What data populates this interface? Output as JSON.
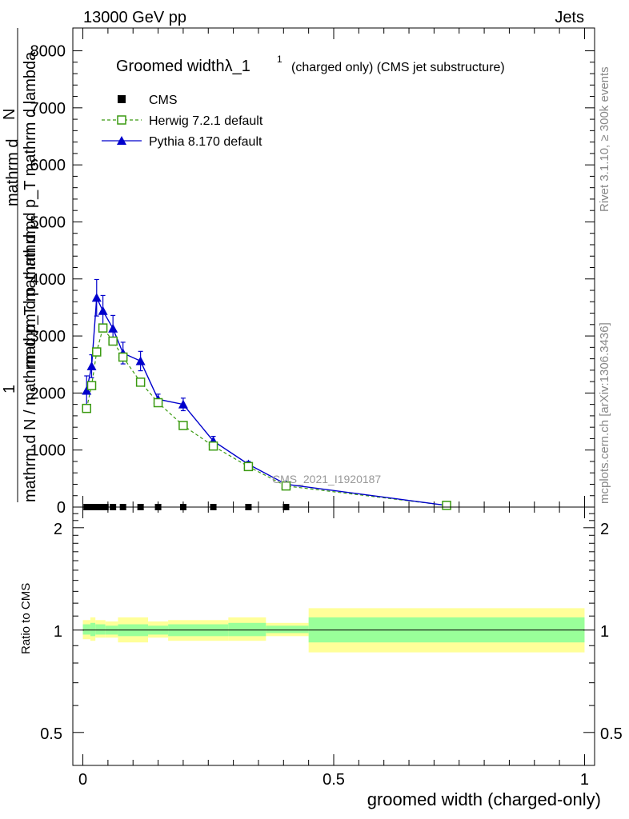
{
  "header": {
    "left": "13000 GeV pp",
    "right": "Jets"
  },
  "side_labels": {
    "rivet": "Rivet 3.1.10, ≥ 300k events",
    "mcplots": "mcplots.cern.ch [arXiv:1306.3436]"
  },
  "watermark": "CMS_2021_I1920187",
  "colors": {
    "cms": "#000000",
    "herwig": "#3a9a10",
    "pythia": "#0000cc",
    "band_inner": "#99ff99",
    "band_outer": "#ffff99"
  },
  "chart_data": [
    {
      "type": "line",
      "title": "Groomed widthλ_1",
      "title_sup": "1",
      "subtitle": "(charged only) (CMS jet substructure)",
      "ylabel_numerator_top": "mathrm d",
      "ylabel_numerator_mid": "N",
      "ylabel_numerator_rest": "mathrm d p_T mathrm d lambda",
      "ylabel_numerator_line2": "mathrm d p",
      "ylabel_fraction_one": "1",
      "ylabel_denominator": "mathrm d N / mathrm d p_T mathrm d p",
      "xlim": [
        -0.02,
        1.02
      ],
      "ylim": [
        0,
        8400
      ],
      "yticks": [
        0,
        1000,
        2000,
        3000,
        4000,
        5000,
        6000,
        7000,
        8000
      ],
      "ytick_labels": [
        "0",
        "1000",
        "2000",
        "3000",
        "4000",
        "5000",
        "6000",
        "7000",
        "8000"
      ],
      "legend_position": "top-left",
      "series": [
        {
          "name": "CMS",
          "marker": "square-filled",
          "x": [
            0.0075,
            0.0175,
            0.0275,
            0.035,
            0.045,
            0.06,
            0.08,
            0.115,
            0.15,
            0.2,
            0.26,
            0.33,
            0.405
          ],
          "y": [
            0,
            0,
            0,
            0,
            0,
            0,
            0,
            0,
            0,
            0,
            0,
            0,
            0
          ]
        },
        {
          "name": "Herwig 7.2.1 default",
          "marker": "square-open",
          "line": "dashed",
          "x": [
            0.0075,
            0.0175,
            0.0275,
            0.04,
            0.06,
            0.08,
            0.115,
            0.15,
            0.2,
            0.26,
            0.33,
            0.405,
            0.725
          ],
          "y": [
            1730,
            2130,
            2720,
            3140,
            2910,
            2630,
            2190,
            1830,
            1430,
            1070,
            710,
            370,
            30
          ]
        },
        {
          "name": "Pythia 8.170 default",
          "marker": "triangle-filled",
          "line": "solid",
          "x": [
            0.0075,
            0.0175,
            0.0275,
            0.04,
            0.06,
            0.08,
            0.115,
            0.15,
            0.2,
            0.26,
            0.33,
            0.405,
            0.725
          ],
          "y": [
            2040,
            2470,
            3670,
            3440,
            3130,
            2700,
            2560,
            1890,
            1800,
            1160,
            750,
            400,
            30
          ],
          "yerr": [
            260,
            200,
            320,
            270,
            230,
            190,
            170,
            90,
            110,
            80,
            50,
            30,
            10
          ]
        }
      ]
    },
    {
      "type": "area",
      "ylabel": "Ratio to CMS",
      "xlabel": "groomed width (charged-only)",
      "xlim": [
        -0.02,
        1.02
      ],
      "ylim": [
        0.4,
        2.3
      ],
      "yscale": "log",
      "yticks": [
        0.5,
        1,
        2
      ],
      "ytick_labels": [
        "0.5",
        "1",
        "2"
      ],
      "xticks": [
        0,
        0.5,
        1
      ],
      "xtick_labels": [
        "0",
        "0.5",
        "1"
      ],
      "bands": [
        {
          "x0": 0.0,
          "x1": 0.015,
          "inner": [
            0.97,
            1.04
          ],
          "outer": [
            0.94,
            1.07
          ]
        },
        {
          "x0": 0.015,
          "x1": 0.025,
          "inner": [
            0.96,
            1.05
          ],
          "outer": [
            0.93,
            1.09
          ]
        },
        {
          "x0": 0.025,
          "x1": 0.045,
          "inner": [
            0.97,
            1.04
          ],
          "outer": [
            0.95,
            1.07
          ]
        },
        {
          "x0": 0.045,
          "x1": 0.07,
          "inner": [
            0.97,
            1.03
          ],
          "outer": [
            0.95,
            1.06
          ]
        },
        {
          "x0": 0.07,
          "x1": 0.13,
          "inner": [
            0.96,
            1.04
          ],
          "outer": [
            0.92,
            1.09
          ]
        },
        {
          "x0": 0.13,
          "x1": 0.17,
          "inner": [
            0.97,
            1.03
          ],
          "outer": [
            0.95,
            1.06
          ]
        },
        {
          "x0": 0.17,
          "x1": 0.29,
          "inner": [
            0.96,
            1.04
          ],
          "outer": [
            0.93,
            1.07
          ]
        },
        {
          "x0": 0.29,
          "x1": 0.365,
          "inner": [
            0.96,
            1.05
          ],
          "outer": [
            0.93,
            1.09
          ]
        },
        {
          "x0": 0.365,
          "x1": 0.45,
          "inner": [
            0.98,
            1.03
          ],
          "outer": [
            0.96,
            1.05
          ]
        },
        {
          "x0": 0.45,
          "x1": 1.0,
          "inner": [
            0.92,
            1.09
          ],
          "outer": [
            0.86,
            1.16
          ]
        }
      ],
      "reference_line": 1
    }
  ]
}
